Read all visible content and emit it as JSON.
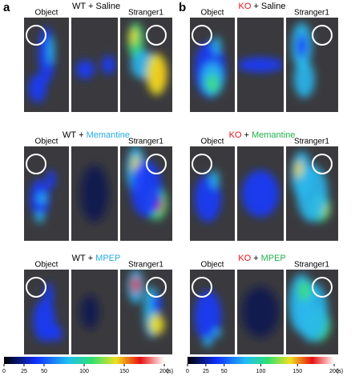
{
  "panels": [
    {
      "label": "a",
      "rows": [
        {
          "object": "Object",
          "genotype": "WT",
          "plus": "+",
          "treatment": "Saline",
          "stranger": "Stranger1"
        },
        {
          "object": "Object",
          "genotype": "WT",
          "plus": "+",
          "treatment": "Memantine",
          "stranger": "Stranger1"
        },
        {
          "object": "Object",
          "genotype": "WT",
          "plus": "+",
          "treatment": "MPEP",
          "stranger": "Stranger1"
        }
      ]
    },
    {
      "label": "b",
      "rows": [
        {
          "object": "Object",
          "genotype": "KO",
          "plus": "+",
          "treatment": "Saline",
          "stranger": "Stranger1"
        },
        {
          "object": "Object",
          "genotype": "KO",
          "plus": "+",
          "treatment": "Memantine",
          "stranger": "Stranger1"
        },
        {
          "object": "Object",
          "genotype": "KO",
          "plus": "+",
          "treatment": "MPEP",
          "stranger": "Stranger1"
        }
      ]
    }
  ],
  "colorbar": {
    "range": [
      0,
      200
    ],
    "ticks": [
      0,
      25,
      50,
      100,
      150,
      200
    ],
    "unit": "(s)"
  }
}
